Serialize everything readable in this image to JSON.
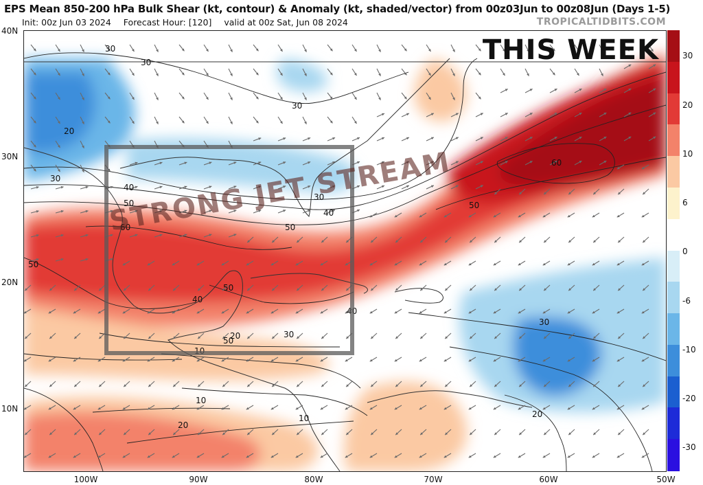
{
  "header": {
    "title": "EPS Mean 850-200 hPa Bulk Shear (kt, contour) & Anomaly (kt, shaded/vector) from 00z03Jun to 00z08Jun (Days 1-5)",
    "init": "Init: 00z Jun 03 2024",
    "forecast_hour": "Forecast Hour: [120]",
    "valid": "valid at 00z Sat, Jun 08 2024",
    "credit": "TROPICALTIDBITS.COM"
  },
  "annotations": {
    "this_week": "THIS WEEK",
    "jet_label": "STRONG JET STREAM"
  },
  "axes": {
    "lat_labels": [
      "40N",
      "30N",
      "20N",
      "10N"
    ],
    "lon_labels": [
      "100W",
      "90W",
      "80W",
      "70W",
      "60W",
      "50W"
    ]
  },
  "colorbar": {
    "labels": [
      "30",
      "20",
      "10",
      "6",
      "0",
      "-6",
      "-10",
      "-20",
      "-30"
    ],
    "colors": [
      "#a50f15",
      "#c8141c",
      "#e23a36",
      "#f3826a",
      "#fbc9a3",
      "#fdf2cc",
      "#ffffff",
      "#d8eef7",
      "#a8d7f0",
      "#6bb6e8",
      "#3d8edb",
      "#1b5fd0",
      "#1d2bd8",
      "#2b10e0"
    ]
  },
  "contour_labels": [
    "30",
    "30",
    "20",
    "30",
    "40",
    "50",
    "60",
    "50",
    "50",
    "30",
    "40",
    "50",
    "40",
    "40",
    "50",
    "30",
    "20",
    "10",
    "10",
    "10",
    "20",
    "30",
    "20",
    "60",
    "50",
    "30"
  ]
}
